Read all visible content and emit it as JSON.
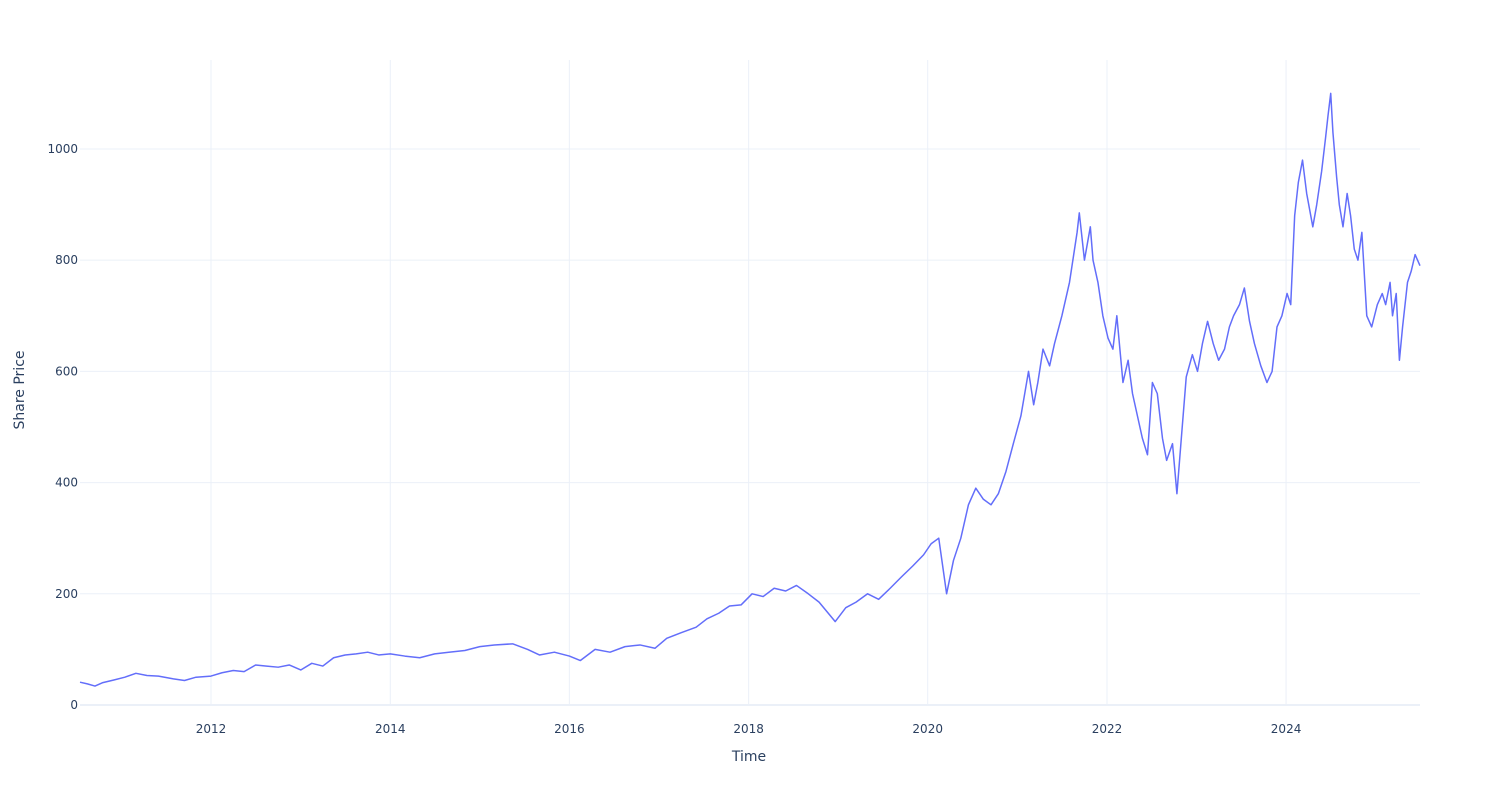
{
  "chart_data": {
    "type": "line",
    "title": "",
    "xlabel": "Time",
    "ylabel": "Share Price",
    "x_tick_labels": [
      "2012",
      "2014",
      "2016",
      "2018",
      "2020",
      "2022",
      "2024"
    ],
    "y_tick_labels": [
      "0",
      "200",
      "400",
      "600",
      "800",
      "1000"
    ],
    "y_ticks": [
      0,
      200,
      400,
      600,
      800,
      1000
    ],
    "xlim": [
      "2010-07-16",
      "2025-06-30"
    ],
    "ylim": [
      0,
      1160
    ],
    "grid": true,
    "legend": "none",
    "line_color": "#636efa",
    "series": [
      {
        "x": [
          "2010-07-16",
          "2010-08-15",
          "2010-09-15",
          "2010-10-15",
          "2010-12-01",
          "2011-01-15",
          "2011-03-01",
          "2011-04-15",
          "2011-06-01",
          "2011-08-01",
          "2011-09-15",
          "2011-11-01",
          "2012-01-01",
          "2012-02-15",
          "2012-04-01",
          "2012-05-15",
          "2012-07-01",
          "2012-08-15",
          "2012-10-01",
          "2012-11-15",
          "2013-01-01",
          "2013-02-15",
          "2013-04-01",
          "2013-05-15",
          "2013-07-01",
          "2013-08-15",
          "2013-10-01",
          "2013-11-15",
          "2014-01-01",
          "2014-03-01",
          "2014-05-01",
          "2014-07-01",
          "2014-09-01",
          "2014-11-01",
          "2015-01-01",
          "2015-03-01",
          "2015-05-15",
          "2015-07-15",
          "2015-09-01",
          "2015-11-01",
          "2016-01-01",
          "2016-02-15",
          "2016-04-15",
          "2016-06-15",
          "2016-08-15",
          "2016-10-15",
          "2016-12-15",
          "2017-02-01",
          "2017-04-01",
          "2017-06-01",
          "2017-07-15",
          "2017-09-01",
          "2017-10-15",
          "2017-12-01",
          "2018-01-15",
          "2018-03-01",
          "2018-04-15",
          "2018-06-01",
          "2018-07-15",
          "2018-09-01",
          "2018-10-15",
          "2018-12-20",
          "2019-02-01",
          "2019-03-15",
          "2019-05-01",
          "2019-06-15",
          "2019-08-01",
          "2019-09-15",
          "2019-11-01",
          "2019-12-15",
          "2020-01-15",
          "2020-02-15",
          "2020-03-18",
          "2020-04-15",
          "2020-05-15",
          "2020-06-15",
          "2020-07-15",
          "2020-08-15",
          "2020-09-15",
          "2020-10-15",
          "2020-11-15",
          "2020-12-15",
          "2021-01-15",
          "2021-02-15",
          "2021-03-08",
          "2021-03-25",
          "2021-04-15",
          "2021-05-12",
          "2021-06-01",
          "2021-07-01",
          "2021-08-01",
          "2021-09-01",
          "2021-09-10",
          "2021-10-01",
          "2021-10-25",
          "2021-11-05",
          "2021-11-25",
          "2021-12-15",
          "2022-01-05",
          "2022-01-25",
          "2022-02-10",
          "2022-03-07",
          "2022-03-28",
          "2022-04-15",
          "2022-05-05",
          "2022-05-25",
          "2022-06-15",
          "2022-07-05",
          "2022-07-25",
          "2022-08-15",
          "2022-09-01",
          "2022-09-25",
          "2022-10-13",
          "2022-10-31",
          "2022-11-20",
          "2022-12-15",
          "2023-01-05",
          "2023-01-25",
          "2023-02-15",
          "2023-03-10",
          "2023-04-01",
          "2023-04-25",
          "2023-05-15",
          "2023-06-01",
          "2023-06-25",
          "2023-07-15",
          "2023-08-05",
          "2023-08-25",
          "2023-09-20",
          "2023-10-15",
          "2023-11-05",
          "2023-11-25",
          "2023-12-15",
          "2024-01-05",
          "2024-01-20",
          "2024-02-05",
          "2024-02-20",
          "2024-03-08",
          "2024-03-25",
          "2024-04-19",
          "2024-05-05",
          "2024-05-25",
          "2024-06-10",
          "2024-06-20",
          "2024-07-01",
          "2024-07-10",
          "2024-07-25",
          "2024-08-05",
          "2024-08-20",
          "2024-09-06",
          "2024-09-20",
          "2024-10-05",
          "2024-10-20",
          "2024-11-05",
          "2024-11-25",
          "2024-12-15",
          "2025-01-07",
          "2025-01-27",
          "2025-02-10",
          "2025-02-28",
          "2025-03-10",
          "2025-03-25",
          "2025-04-07",
          "2025-04-20",
          "2025-05-10",
          "2025-05-25",
          "2025-06-10",
          "2025-06-30"
        ],
        "values": [
          41,
          38,
          34,
          40,
          45,
          50,
          57,
          53,
          52,
          47,
          44,
          50,
          52,
          58,
          62,
          60,
          72,
          70,
          68,
          72,
          63,
          75,
          70,
          85,
          90,
          92,
          95,
          90,
          92,
          88,
          85,
          92,
          95,
          98,
          105,
          108,
          110,
          100,
          90,
          95,
          88,
          80,
          100,
          95,
          105,
          108,
          102,
          120,
          130,
          140,
          155,
          165,
          178,
          180,
          200,
          195,
          210,
          205,
          215,
          200,
          185,
          150,
          175,
          185,
          200,
          190,
          210,
          230,
          250,
          270,
          290,
          300,
          200,
          260,
          300,
          360,
          390,
          370,
          360,
          380,
          420,
          470,
          520,
          600,
          540,
          580,
          640,
          610,
          650,
          700,
          760,
          850,
          885,
          800,
          860,
          800,
          760,
          700,
          660,
          640,
          700,
          580,
          620,
          560,
          520,
          480,
          450,
          580,
          560,
          480,
          440,
          470,
          380,
          480,
          590,
          630,
          600,
          650,
          690,
          650,
          620,
          640,
          680,
          700,
          720,
          750,
          690,
          650,
          610,
          580,
          600,
          680,
          700,
          740,
          720,
          880,
          940,
          980,
          920,
          860,
          900,
          960,
          1020,
          1060,
          1100,
          1030,
          950,
          900,
          860,
          920,
          880,
          820,
          800,
          850,
          700,
          680,
          720,
          740,
          720,
          760,
          700,
          740,
          620,
          680,
          760,
          780,
          810,
          790
        ]
      }
    ]
  }
}
